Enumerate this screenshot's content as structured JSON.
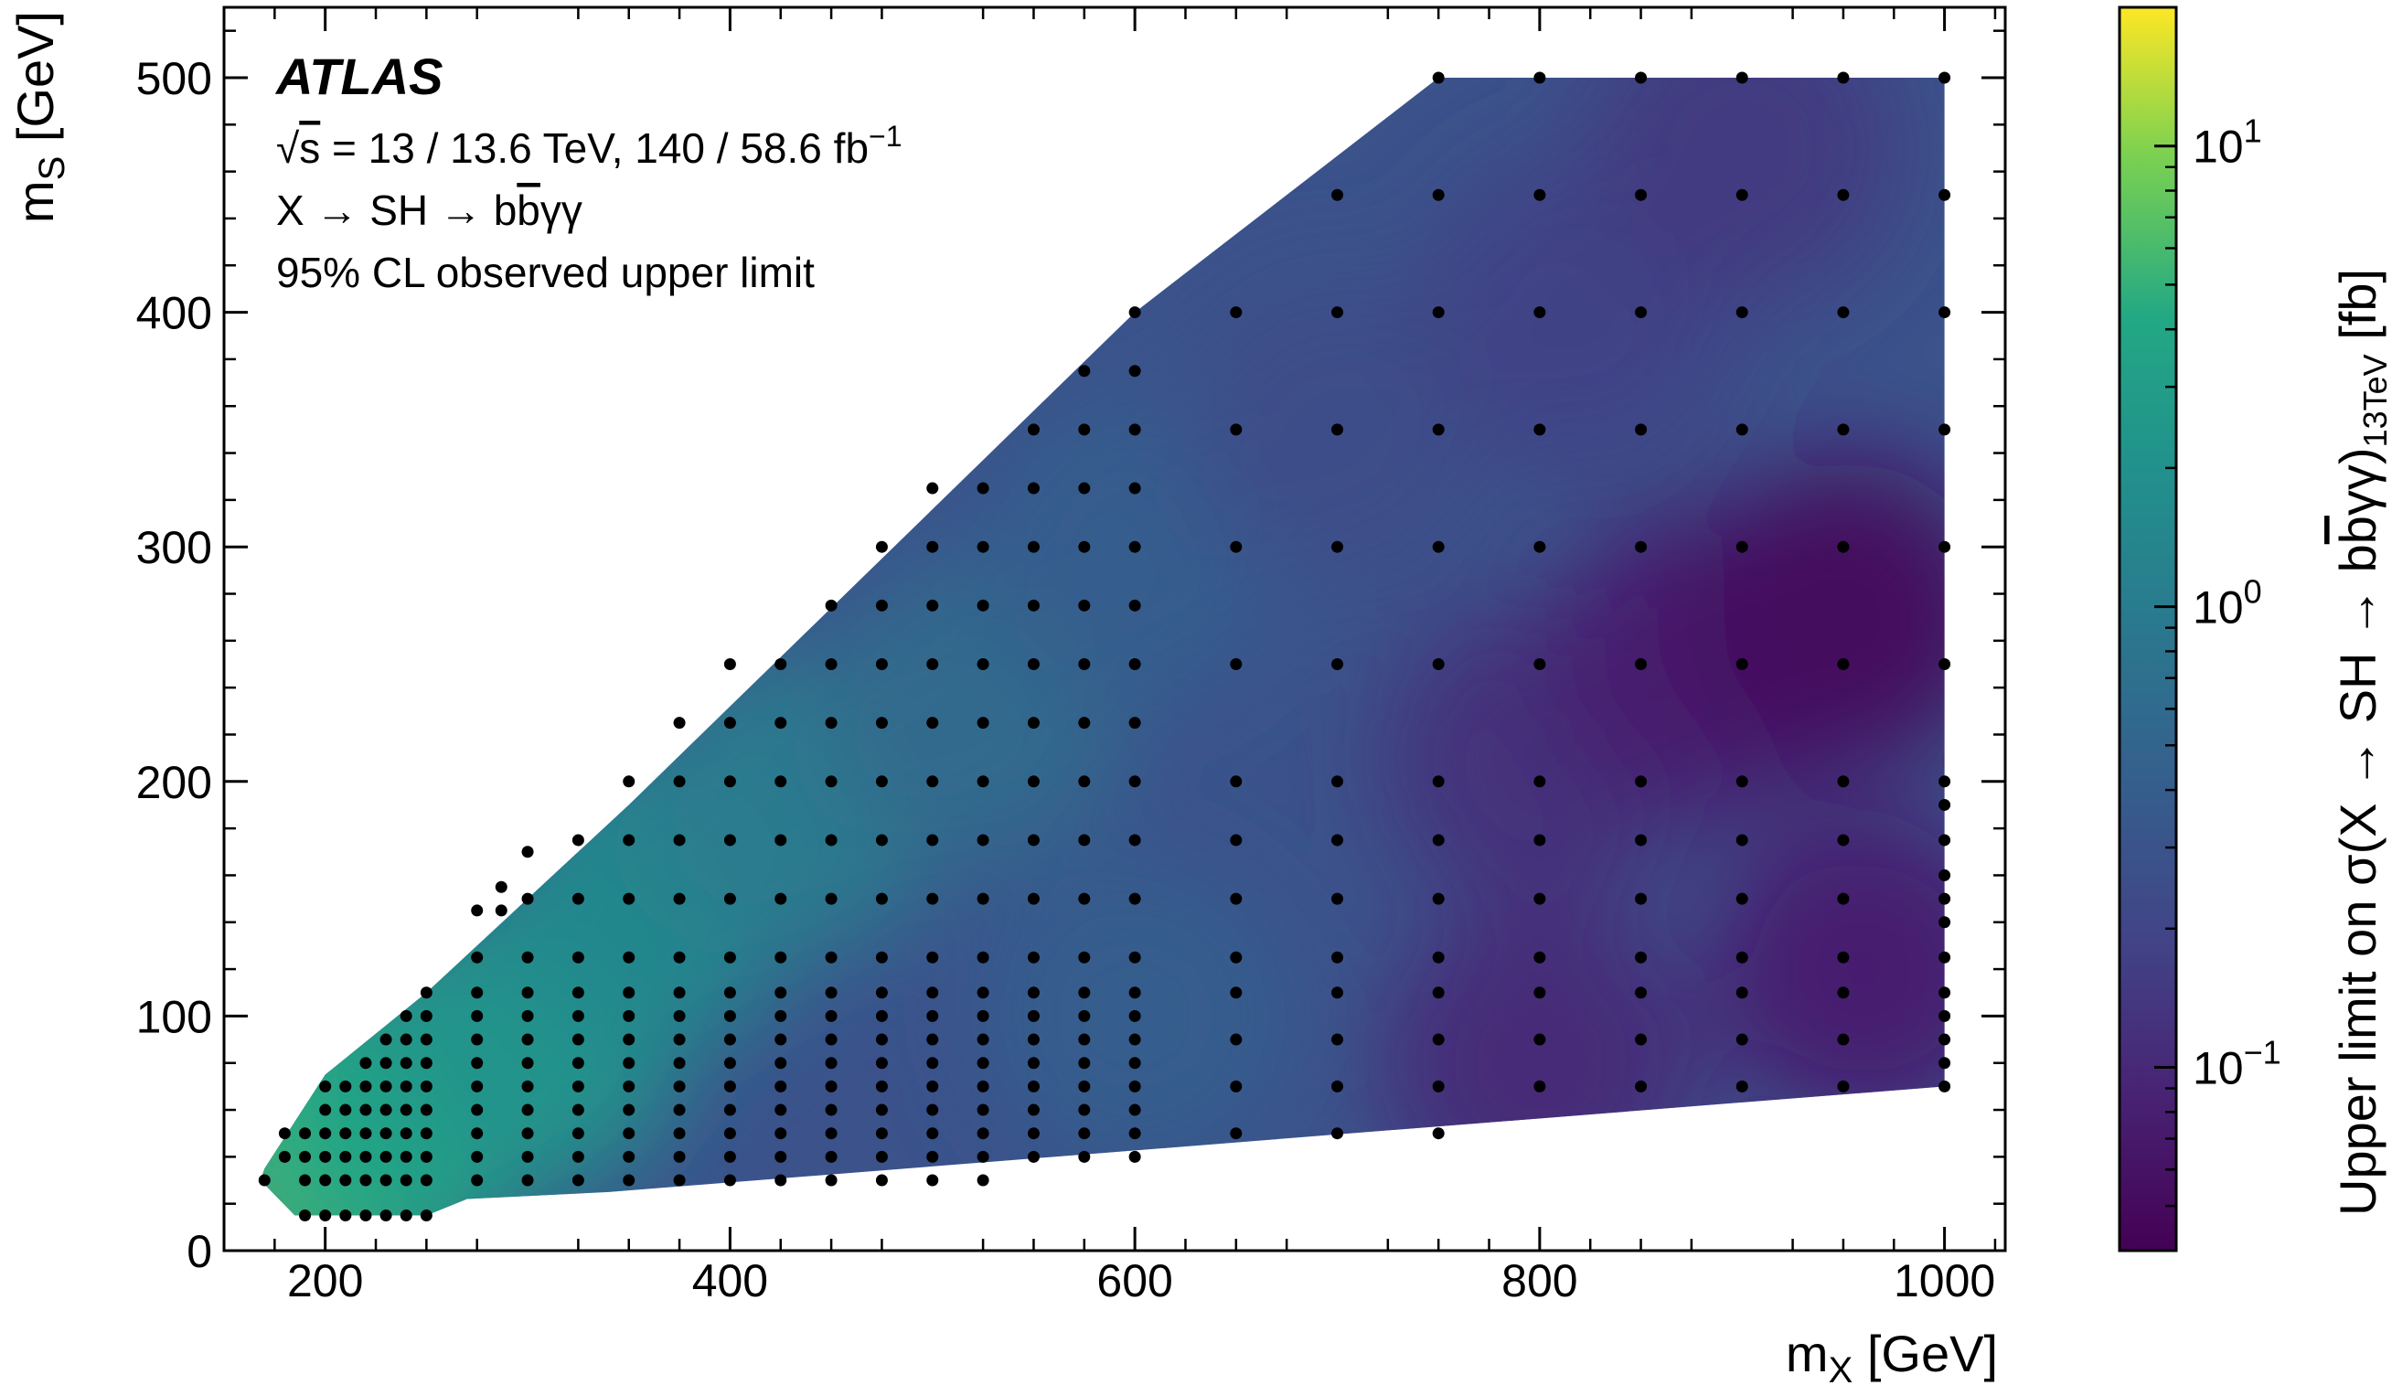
{
  "chart_data": {
    "type": "heatmap",
    "title": "",
    "xlabel": "m",
    "xlabel_sub": "X",
    "xlabel_unit": " [GeV]",
    "ylabel": "m",
    "ylabel_sub": "S",
    "ylabel_unit": " [GeV]",
    "xlim": [
      150,
      1030
    ],
    "ylim": [
      0,
      530
    ],
    "x_ticks": [
      "200",
      "400",
      "600",
      "800",
      "1000"
    ],
    "x_tick_values": [
      200,
      400,
      600,
      800,
      1000
    ],
    "y_ticks": [
      "0",
      "100",
      "200",
      "300",
      "400",
      "500"
    ],
    "y_tick_values": [
      0,
      100,
      200,
      300,
      400,
      500
    ],
    "colorbar": {
      "label_prefix": "Upper limit on σ(X → SH → b",
      "label_bbar": "b",
      "label_suffix": "γγ)",
      "label_sub": "13TeV",
      "label_unit": " [fb]",
      "scale": "log",
      "range": [
        0.04,
        20
      ],
      "ticks": [
        {
          "value": 0.1,
          "base": "10",
          "exp": "−1"
        },
        {
          "value": 1,
          "base": "10",
          "exp": "0"
        },
        {
          "value": 10,
          "base": "10",
          "exp": "1"
        }
      ],
      "colormap": "viridis"
    },
    "annotations": {
      "experiment": "ATLAS",
      "line1_sqrt": "√",
      "line1_s": "s",
      "line1_rest": " = 13 / 13.6 TeV, 140 / 58.6 fb",
      "line1_sup": "−1",
      "line2_pre": "X → SH → b",
      "line2_bbar": "b",
      "line2_post": "γγ",
      "line3": "95% CL observed upper limit"
    },
    "points": [
      [
        170,
        30
      ],
      [
        180,
        40
      ],
      [
        180,
        50
      ],
      [
        190,
        15
      ],
      [
        190,
        30
      ],
      [
        190,
        40
      ],
      [
        190,
        50
      ],
      [
        200,
        15
      ],
      [
        200,
        30
      ],
      [
        200,
        40
      ],
      [
        200,
        50
      ],
      [
        200,
        60
      ],
      [
        200,
        70
      ],
      [
        210,
        15
      ],
      [
        210,
        30
      ],
      [
        210,
        40
      ],
      [
        210,
        50
      ],
      [
        210,
        60
      ],
      [
        210,
        70
      ],
      [
        220,
        15
      ],
      [
        220,
        30
      ],
      [
        220,
        40
      ],
      [
        220,
        50
      ],
      [
        220,
        60
      ],
      [
        220,
        70
      ],
      [
        220,
        80
      ],
      [
        230,
        15
      ],
      [
        230,
        30
      ],
      [
        230,
        40
      ],
      [
        230,
        50
      ],
      [
        230,
        60
      ],
      [
        230,
        70
      ],
      [
        230,
        80
      ],
      [
        230,
        90
      ],
      [
        240,
        15
      ],
      [
        240,
        30
      ],
      [
        240,
        40
      ],
      [
        240,
        50
      ],
      [
        240,
        60
      ],
      [
        240,
        70
      ],
      [
        240,
        80
      ],
      [
        240,
        90
      ],
      [
        240,
        100
      ],
      [
        250,
        15
      ],
      [
        250,
        30
      ],
      [
        250,
        40
      ],
      [
        250,
        50
      ],
      [
        250,
        60
      ],
      [
        250,
        70
      ],
      [
        250,
        80
      ],
      [
        250,
        90
      ],
      [
        250,
        100
      ],
      [
        250,
        110
      ],
      [
        275,
        30
      ],
      [
        275,
        40
      ],
      [
        275,
        50
      ],
      [
        275,
        60
      ],
      [
        275,
        70
      ],
      [
        275,
        80
      ],
      [
        275,
        90
      ],
      [
        275,
        100
      ],
      [
        275,
        110
      ],
      [
        275,
        125
      ],
      [
        275,
        145
      ],
      [
        287,
        145
      ],
      [
        287,
        155
      ],
      [
        300,
        30
      ],
      [
        300,
        40
      ],
      [
        300,
        50
      ],
      [
        300,
        60
      ],
      [
        300,
        70
      ],
      [
        300,
        80
      ],
      [
        300,
        90
      ],
      [
        300,
        100
      ],
      [
        300,
        110
      ],
      [
        300,
        125
      ],
      [
        300,
        150
      ],
      [
        300,
        170
      ],
      [
        325,
        30
      ],
      [
        325,
        40
      ],
      [
        325,
        50
      ],
      [
        325,
        60
      ],
      [
        325,
        70
      ],
      [
        325,
        80
      ],
      [
        325,
        90
      ],
      [
        325,
        100
      ],
      [
        325,
        110
      ],
      [
        325,
        125
      ],
      [
        325,
        150
      ],
      [
        325,
        175
      ],
      [
        350,
        30
      ],
      [
        350,
        40
      ],
      [
        350,
        50
      ],
      [
        350,
        60
      ],
      [
        350,
        70
      ],
      [
        350,
        80
      ],
      [
        350,
        90
      ],
      [
        350,
        100
      ],
      [
        350,
        110
      ],
      [
        350,
        125
      ],
      [
        350,
        150
      ],
      [
        350,
        175
      ],
      [
        350,
        200
      ],
      [
        375,
        30
      ],
      [
        375,
        40
      ],
      [
        375,
        50
      ],
      [
        375,
        60
      ],
      [
        375,
        70
      ],
      [
        375,
        80
      ],
      [
        375,
        90
      ],
      [
        375,
        100
      ],
      [
        375,
        110
      ],
      [
        375,
        125
      ],
      [
        375,
        150
      ],
      [
        375,
        175
      ],
      [
        375,
        200
      ],
      [
        375,
        225
      ],
      [
        400,
        30
      ],
      [
        400,
        40
      ],
      [
        400,
        50
      ],
      [
        400,
        60
      ],
      [
        400,
        70
      ],
      [
        400,
        80
      ],
      [
        400,
        90
      ],
      [
        400,
        100
      ],
      [
        400,
        110
      ],
      [
        400,
        125
      ],
      [
        400,
        150
      ],
      [
        400,
        175
      ],
      [
        400,
        200
      ],
      [
        400,
        225
      ],
      [
        400,
        250
      ],
      [
        425,
        30
      ],
      [
        425,
        40
      ],
      [
        425,
        50
      ],
      [
        425,
        60
      ],
      [
        425,
        70
      ],
      [
        425,
        80
      ],
      [
        425,
        90
      ],
      [
        425,
        100
      ],
      [
        425,
        110
      ],
      [
        425,
        125
      ],
      [
        425,
        150
      ],
      [
        425,
        175
      ],
      [
        425,
        200
      ],
      [
        425,
        225
      ],
      [
        425,
        250
      ],
      [
        450,
        30
      ],
      [
        450,
        40
      ],
      [
        450,
        50
      ],
      [
        450,
        60
      ],
      [
        450,
        70
      ],
      [
        450,
        80
      ],
      [
        450,
        90
      ],
      [
        450,
        100
      ],
      [
        450,
        110
      ],
      [
        450,
        125
      ],
      [
        450,
        150
      ],
      [
        450,
        175
      ],
      [
        450,
        200
      ],
      [
        450,
        225
      ],
      [
        450,
        250
      ],
      [
        450,
        275
      ],
      [
        475,
        30
      ],
      [
        475,
        40
      ],
      [
        475,
        50
      ],
      [
        475,
        60
      ],
      [
        475,
        70
      ],
      [
        475,
        80
      ],
      [
        475,
        90
      ],
      [
        475,
        100
      ],
      [
        475,
        110
      ],
      [
        475,
        125
      ],
      [
        475,
        150
      ],
      [
        475,
        175
      ],
      [
        475,
        200
      ],
      [
        475,
        225
      ],
      [
        475,
        250
      ],
      [
        475,
        275
      ],
      [
        475,
        300
      ],
      [
        500,
        30
      ],
      [
        500,
        40
      ],
      [
        500,
        50
      ],
      [
        500,
        60
      ],
      [
        500,
        70
      ],
      [
        500,
        80
      ],
      [
        500,
        90
      ],
      [
        500,
        100
      ],
      [
        500,
        110
      ],
      [
        500,
        125
      ],
      [
        500,
        150
      ],
      [
        500,
        175
      ],
      [
        500,
        200
      ],
      [
        500,
        225
      ],
      [
        500,
        250
      ],
      [
        500,
        275
      ],
      [
        500,
        300
      ],
      [
        500,
        325
      ],
      [
        525,
        30
      ],
      [
        525,
        40
      ],
      [
        525,
        50
      ],
      [
        525,
        60
      ],
      [
        525,
        70
      ],
      [
        525,
        80
      ],
      [
        525,
        90
      ],
      [
        525,
        100
      ],
      [
        525,
        110
      ],
      [
        525,
        125
      ],
      [
        525,
        150
      ],
      [
        525,
        175
      ],
      [
        525,
        200
      ],
      [
        525,
        225
      ],
      [
        525,
        250
      ],
      [
        525,
        275
      ],
      [
        525,
        300
      ],
      [
        525,
        325
      ],
      [
        550,
        40
      ],
      [
        550,
        50
      ],
      [
        550,
        60
      ],
      [
        550,
        70
      ],
      [
        550,
        80
      ],
      [
        550,
        90
      ],
      [
        550,
        100
      ],
      [
        550,
        110
      ],
      [
        550,
        125
      ],
      [
        550,
        150
      ],
      [
        550,
        175
      ],
      [
        550,
        200
      ],
      [
        550,
        225
      ],
      [
        550,
        250
      ],
      [
        550,
        275
      ],
      [
        550,
        300
      ],
      [
        550,
        325
      ],
      [
        550,
        350
      ],
      [
        575,
        40
      ],
      [
        575,
        50
      ],
      [
        575,
        60
      ],
      [
        575,
        70
      ],
      [
        575,
        80
      ],
      [
        575,
        90
      ],
      [
        575,
        100
      ],
      [
        575,
        110
      ],
      [
        575,
        125
      ],
      [
        575,
        150
      ],
      [
        575,
        175
      ],
      [
        575,
        200
      ],
      [
        575,
        225
      ],
      [
        575,
        250
      ],
      [
        575,
        275
      ],
      [
        575,
        300
      ],
      [
        575,
        325
      ],
      [
        575,
        350
      ],
      [
        575,
        375
      ],
      [
        600,
        40
      ],
      [
        600,
        50
      ],
      [
        600,
        60
      ],
      [
        600,
        70
      ],
      [
        600,
        80
      ],
      [
        600,
        90
      ],
      [
        600,
        100
      ],
      [
        600,
        110
      ],
      [
        600,
        125
      ],
      [
        600,
        150
      ],
      [
        600,
        175
      ],
      [
        600,
        200
      ],
      [
        600,
        225
      ],
      [
        600,
        250
      ],
      [
        600,
        275
      ],
      [
        600,
        300
      ],
      [
        600,
        325
      ],
      [
        600,
        350
      ],
      [
        600,
        375
      ],
      [
        600,
        400
      ],
      [
        650,
        50
      ],
      [
        650,
        70
      ],
      [
        650,
        90
      ],
      [
        650,
        110
      ],
      [
        650,
        125
      ],
      [
        650,
        150
      ],
      [
        650,
        175
      ],
      [
        650,
        200
      ],
      [
        650,
        250
      ],
      [
        650,
        300
      ],
      [
        650,
        350
      ],
      [
        650,
        400
      ],
      [
        700,
        50
      ],
      [
        700,
        70
      ],
      [
        700,
        90
      ],
      [
        700,
        110
      ],
      [
        700,
        125
      ],
      [
        700,
        150
      ],
      [
        700,
        175
      ],
      [
        700,
        200
      ],
      [
        700,
        250
      ],
      [
        700,
        300
      ],
      [
        700,
        350
      ],
      [
        700,
        400
      ],
      [
        700,
        450
      ],
      [
        750,
        50
      ],
      [
        750,
        70
      ],
      [
        750,
        90
      ],
      [
        750,
        110
      ],
      [
        750,
        125
      ],
      [
        750,
        150
      ],
      [
        750,
        175
      ],
      [
        750,
        200
      ],
      [
        750,
        250
      ],
      [
        750,
        300
      ],
      [
        750,
        350
      ],
      [
        750,
        400
      ],
      [
        750,
        450
      ],
      [
        750,
        500
      ],
      [
        800,
        70
      ],
      [
        800,
        90
      ],
      [
        800,
        110
      ],
      [
        800,
        125
      ],
      [
        800,
        150
      ],
      [
        800,
        175
      ],
      [
        800,
        200
      ],
      [
        800,
        250
      ],
      [
        800,
        300
      ],
      [
        800,
        350
      ],
      [
        800,
        400
      ],
      [
        800,
        450
      ],
      [
        800,
        500
      ],
      [
        850,
        70
      ],
      [
        850,
        90
      ],
      [
        850,
        110
      ],
      [
        850,
        125
      ],
      [
        850,
        150
      ],
      [
        850,
        175
      ],
      [
        850,
        200
      ],
      [
        850,
        250
      ],
      [
        850,
        300
      ],
      [
        850,
        350
      ],
      [
        850,
        400
      ],
      [
        850,
        450
      ],
      [
        850,
        500
      ],
      [
        900,
        70
      ],
      [
        900,
        90
      ],
      [
        900,
        110
      ],
      [
        900,
        125
      ],
      [
        900,
        150
      ],
      [
        900,
        175
      ],
      [
        900,
        200
      ],
      [
        900,
        250
      ],
      [
        900,
        300
      ],
      [
        900,
        350
      ],
      [
        900,
        400
      ],
      [
        900,
        450
      ],
      [
        900,
        500
      ],
      [
        950,
        70
      ],
      [
        950,
        90
      ],
      [
        950,
        110
      ],
      [
        950,
        125
      ],
      [
        950,
        150
      ],
      [
        950,
        175
      ],
      [
        950,
        200
      ],
      [
        950,
        250
      ],
      [
        950,
        300
      ],
      [
        950,
        350
      ],
      [
        950,
        400
      ],
      [
        950,
        450
      ],
      [
        950,
        500
      ],
      [
        1000,
        70
      ],
      [
        1000,
        80
      ],
      [
        1000,
        90
      ],
      [
        1000,
        100
      ],
      [
        1000,
        110
      ],
      [
        1000,
        125
      ],
      [
        1000,
        140
      ],
      [
        1000,
        150
      ],
      [
        1000,
        160
      ],
      [
        1000,
        175
      ],
      [
        1000,
        190
      ],
      [
        1000,
        200
      ],
      [
        1000,
        250
      ],
      [
        1000,
        300
      ],
      [
        1000,
        350
      ],
      [
        1000,
        400
      ],
      [
        1000,
        450
      ],
      [
        1000,
        500
      ]
    ],
    "limit_regions": [
      {
        "x": 205,
        "y": 45,
        "value": 6
      },
      {
        "x": 240,
        "y": 60,
        "value": 4
      },
      {
        "x": 300,
        "y": 90,
        "value": 2.2
      },
      {
        "x": 360,
        "y": 150,
        "value": 1.5
      },
      {
        "x": 430,
        "y": 190,
        "value": 1.0
      },
      {
        "x": 520,
        "y": 230,
        "value": 0.6
      },
      {
        "x": 600,
        "y": 300,
        "value": 0.4
      },
      {
        "x": 600,
        "y": 100,
        "value": 0.4
      },
      {
        "x": 700,
        "y": 350,
        "value": 0.25
      },
      {
        "x": 800,
        "y": 210,
        "value": 0.12
      },
      {
        "x": 820,
        "y": 400,
        "value": 0.18
      },
      {
        "x": 900,
        "y": 470,
        "value": 0.15
      },
      {
        "x": 880,
        "y": 250,
        "value": 0.08
      },
      {
        "x": 950,
        "y": 270,
        "value": 0.05
      },
      {
        "x": 960,
        "y": 120,
        "value": 0.08
      },
      {
        "x": 800,
        "y": 80,
        "value": 0.1
      }
    ],
    "region_boundary": [
      [
        168,
        30
      ],
      [
        185,
        15
      ],
      [
        250,
        15
      ],
      [
        270,
        22
      ],
      [
        340,
        25
      ],
      [
        1000,
        70
      ],
      [
        1000,
        500
      ],
      [
        750,
        500
      ],
      [
        600,
        400
      ],
      [
        350,
        190
      ],
      [
        250,
        110
      ],
      [
        200,
        75
      ],
      [
        170,
        35
      ]
    ]
  }
}
